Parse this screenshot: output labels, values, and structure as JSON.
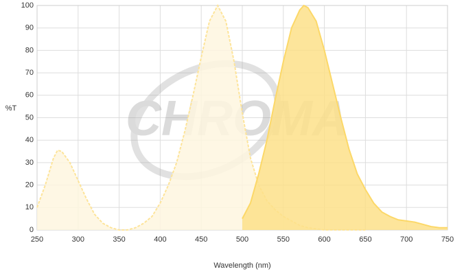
{
  "chart_data": {
    "type": "area",
    "watermark": "CHROMA",
    "xlabel": "Wavelength (nm)",
    "ylabel": "%T",
    "xlim": [
      250,
      750
    ],
    "xticks": [
      250,
      300,
      350,
      400,
      450,
      500,
      550,
      600,
      650,
      700,
      750
    ],
    "ylim": [
      0,
      100
    ],
    "yticks": [
      0,
      10,
      20,
      30,
      40,
      50,
      60,
      70,
      80,
      90,
      100
    ],
    "grid": true,
    "series": [
      {
        "color": "#fde49a",
        "fill": "#fef6df",
        "dashed": true,
        "x": [
          250,
          260,
          270,
          275,
          280,
          290,
          300,
          310,
          320,
          330,
          340,
          350,
          360,
          370,
          380,
          390,
          400,
          410,
          420,
          430,
          440,
          450,
          460,
          470,
          480,
          490,
          500,
          510,
          520,
          530,
          540,
          550,
          560,
          570,
          580,
          590,
          600,
          650
        ],
        "values": [
          10,
          20,
          32,
          35.5,
          35,
          30,
          22,
          14,
          7,
          3,
          1,
          0,
          0,
          1,
          3,
          6,
          12,
          20,
          30,
          44,
          60,
          77,
          93,
          100,
          93,
          75,
          52,
          32,
          20,
          13,
          9,
          6,
          4,
          2,
          1,
          0.5,
          0,
          0
        ]
      },
      {
        "color": "#fcd868",
        "fill": "#fde08a",
        "dashed": false,
        "x": [
          500,
          510,
          520,
          530,
          540,
          550,
          560,
          570,
          575,
          580,
          590,
          600,
          610,
          620,
          630,
          640,
          650,
          660,
          670,
          680,
          690,
          700,
          710,
          720,
          730,
          740,
          750
        ],
        "values": [
          5,
          12,
          25,
          40,
          58,
          75,
          90,
          98,
          100,
          99,
          93,
          80,
          65,
          50,
          36,
          25,
          18,
          12,
          8,
          6,
          4.5,
          4,
          3.5,
          2.5,
          1.5,
          1,
          1
        ]
      }
    ]
  }
}
